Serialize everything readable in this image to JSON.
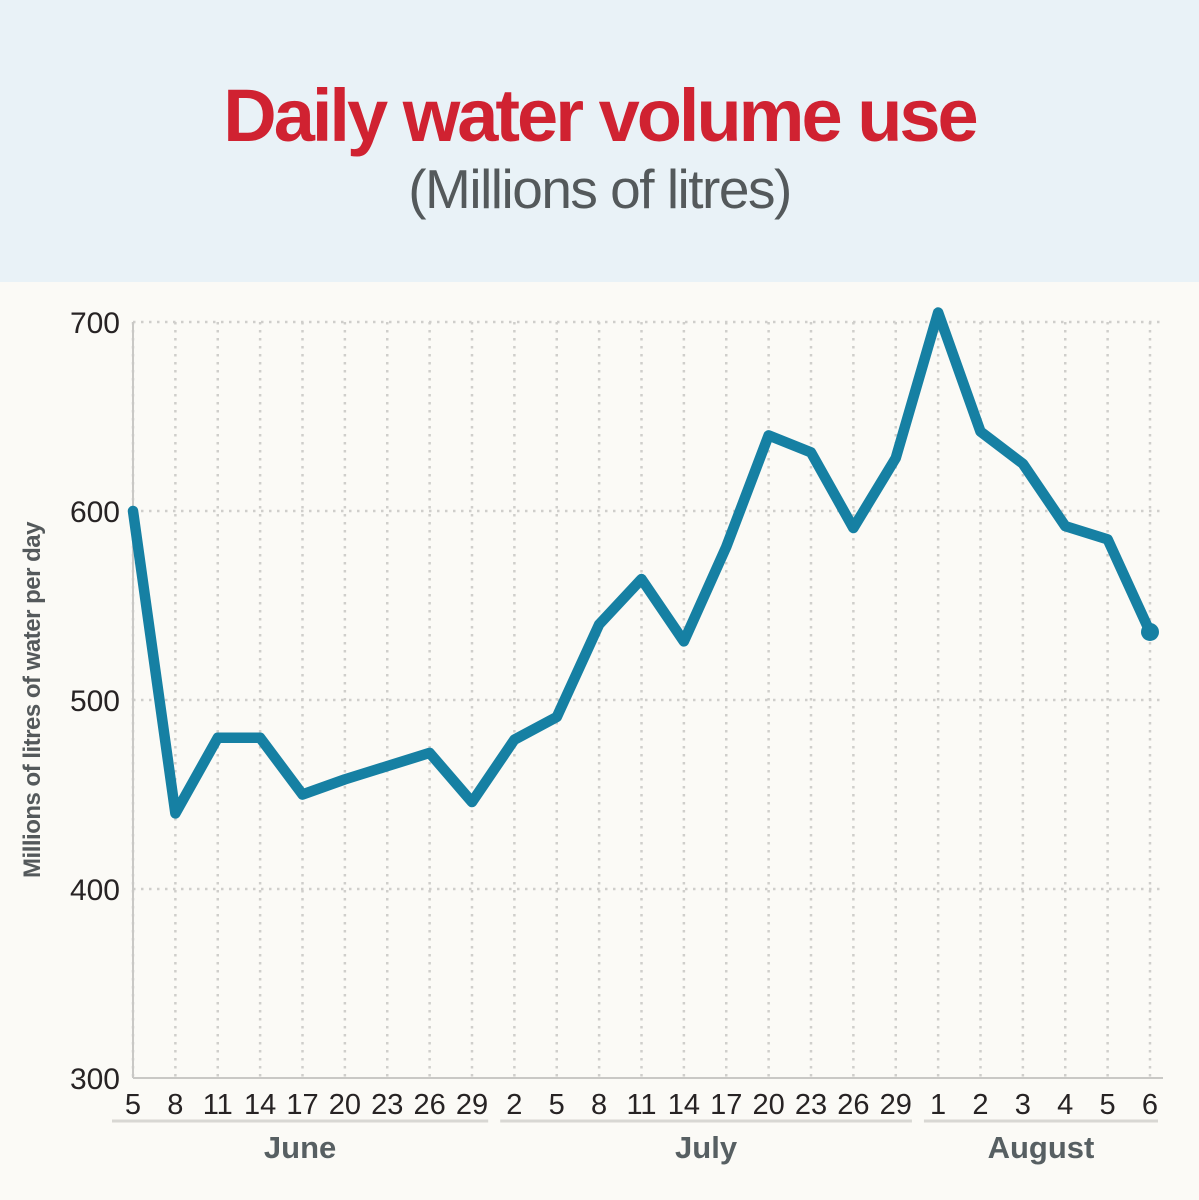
{
  "header": {
    "title": "Daily water volume use",
    "subtitle": "(Millions of litres)"
  },
  "chart_data": {
    "type": "line",
    "title": "Daily water volume use",
    "subtitle": "(Millions of litres)",
    "ylabel": "Millions of litres of water per day",
    "ylim": [
      300,
      700
    ],
    "y_ticks": [
      300,
      400,
      500,
      600,
      700
    ],
    "grid": "dotted",
    "legend": "none",
    "end_marker": "dot",
    "x_groups": [
      {
        "month": "June",
        "days": [
          "5",
          "8",
          "11",
          "14",
          "17",
          "20",
          "23",
          "26",
          "29"
        ]
      },
      {
        "month": "July",
        "days": [
          "2",
          "5",
          "8",
          "11",
          "14",
          "17",
          "20",
          "23",
          "26",
          "29"
        ]
      },
      {
        "month": "August",
        "days": [
          "1",
          "2",
          "3",
          "4",
          "5",
          "6"
        ]
      }
    ],
    "series": [
      {
        "name": "Daily water volume (millions of litres)",
        "values": [
          600,
          440,
          480,
          480,
          450,
          458,
          465,
          472,
          446,
          479,
          491,
          540,
          564,
          531,
          581,
          640,
          631,
          591,
          628,
          705,
          642,
          625,
          592,
          585,
          536
        ]
      }
    ]
  },
  "colors": {
    "title_red": "#d02231",
    "subtitle_gray": "#54595b",
    "line_blue": "#1680a3",
    "header_bg": "#e9f2f7",
    "page_bg": "#fbfaf6",
    "axis_line": "#c9c8c5",
    "gridline": "#cfcecb",
    "tick_text": "#272324",
    "month_text": "#575f62",
    "group_underline": "#d8d7d3",
    "ylabel_text": "#54595b"
  }
}
